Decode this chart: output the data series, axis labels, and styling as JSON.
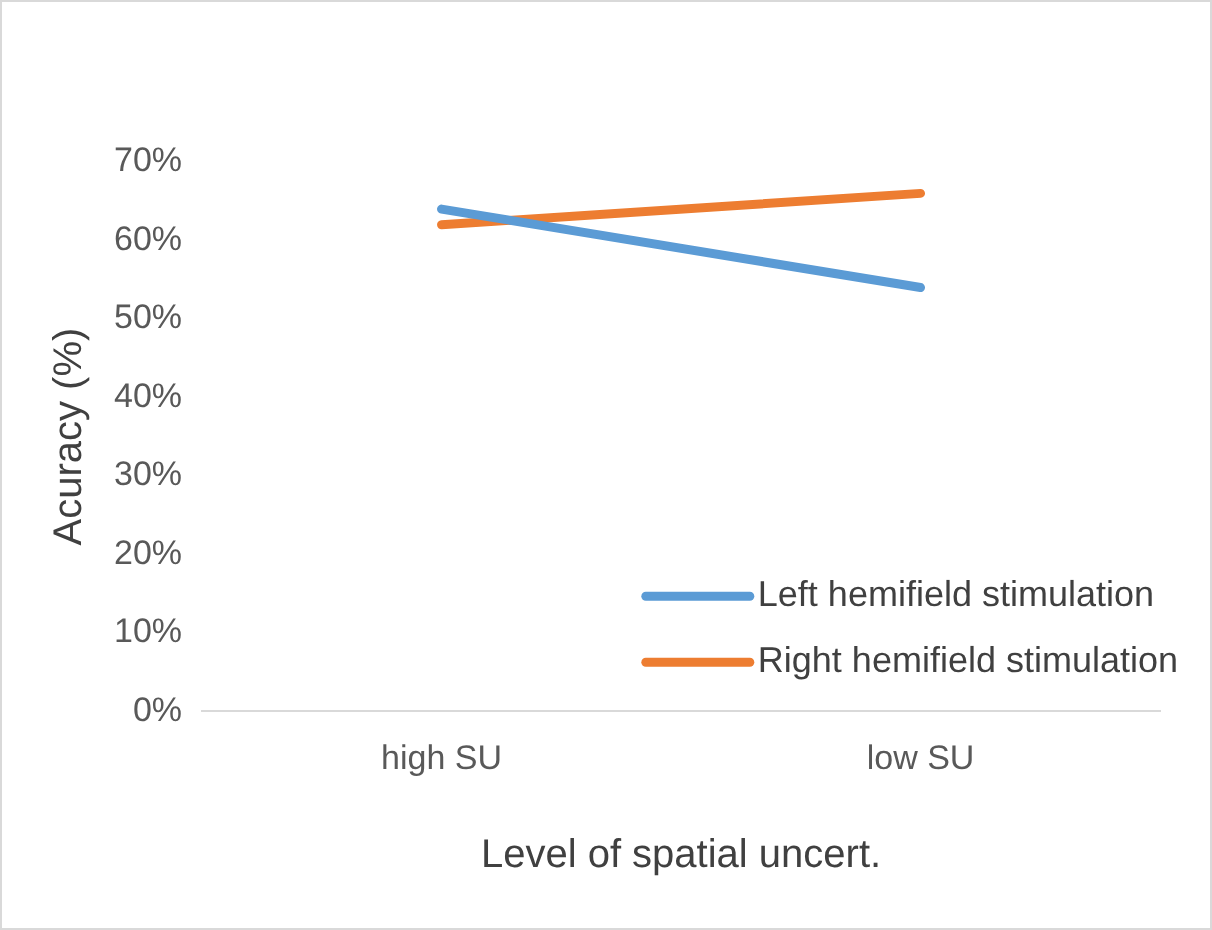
{
  "chart_data": {
    "type": "line",
    "xlabel": "Level of spatial uncert.",
    "ylabel": "Acuracy (%)",
    "categories": [
      "high SU",
      "low SU"
    ],
    "series": [
      {
        "name": "Left hemifield stimulation",
        "color": "#5b9bd5",
        "values": [
          64,
          54
        ]
      },
      {
        "name": "Right hemifield stimulation",
        "color": "#ed7d31",
        "values": [
          62,
          66
        ]
      }
    ],
    "ylim": [
      0,
      70
    ],
    "yticks": [
      {
        "value": 0,
        "label": "0%"
      },
      {
        "value": 10,
        "label": "10%"
      },
      {
        "value": 20,
        "label": "20%"
      },
      {
        "value": 30,
        "label": "30%"
      },
      {
        "value": 40,
        "label": "40%"
      },
      {
        "value": 50,
        "label": "50%"
      },
      {
        "value": 60,
        "label": "60%"
      },
      {
        "value": 70,
        "label": "70%"
      }
    ],
    "grid": false,
    "legend": "bottom right",
    "marker": "none",
    "line_style": "solid"
  }
}
